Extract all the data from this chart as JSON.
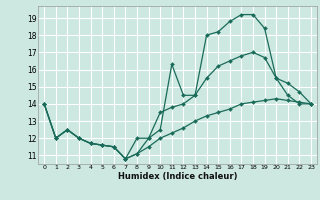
{
  "xlabel": "Humidex (Indice chaleur)",
  "bg_color": "#cce8e0",
  "grid_color": "#ffffff",
  "line_color": "#1a6b5a",
  "xlim": [
    -0.5,
    23.5
  ],
  "ylim": [
    10.5,
    19.7
  ],
  "yticks": [
    11,
    12,
    13,
    14,
    15,
    16,
    17,
    18,
    19
  ],
  "xticks": [
    0,
    1,
    2,
    3,
    4,
    5,
    6,
    7,
    8,
    9,
    10,
    11,
    12,
    13,
    14,
    15,
    16,
    17,
    18,
    19,
    20,
    21,
    22,
    23
  ],
  "line1_x": [
    0,
    1,
    2,
    3,
    4,
    5,
    6,
    7,
    8,
    9,
    10,
    11,
    12,
    13,
    14,
    15,
    16,
    17,
    18,
    19,
    20,
    21,
    22,
    23
  ],
  "line1_y": [
    14,
    12,
    12.5,
    12,
    11.7,
    11.6,
    11.5,
    10.8,
    11.1,
    11.5,
    12,
    12.3,
    12.6,
    13,
    13.3,
    13.5,
    13.7,
    14,
    14.1,
    14.2,
    14.3,
    14.2,
    14.1,
    14.0
  ],
  "line2_x": [
    0,
    1,
    2,
    3,
    4,
    5,
    6,
    7,
    8,
    9,
    10,
    11,
    12,
    13,
    14,
    15,
    16,
    17,
    18,
    19,
    20,
    21,
    22,
    23
  ],
  "line2_y": [
    14,
    12,
    12.5,
    12,
    11.7,
    11.6,
    11.5,
    10.8,
    12.0,
    12,
    12.5,
    16.3,
    14.5,
    14.5,
    18.0,
    18.2,
    18.8,
    19.2,
    19.2,
    18.4,
    15.5,
    15.2,
    14.7,
    14.0
  ],
  "line3_x": [
    0,
    1,
    2,
    3,
    4,
    5,
    6,
    7,
    8,
    9,
    10,
    11,
    12,
    13,
    14,
    15,
    16,
    17,
    18,
    19,
    20,
    21,
    22,
    23
  ],
  "line3_y": [
    14,
    12,
    12.5,
    12,
    11.7,
    11.6,
    11.5,
    10.8,
    11.1,
    12,
    13.5,
    13.8,
    14.0,
    14.5,
    15.5,
    16.2,
    16.5,
    16.8,
    17.0,
    16.7,
    15.5,
    14.5,
    14.0,
    14.0
  ]
}
